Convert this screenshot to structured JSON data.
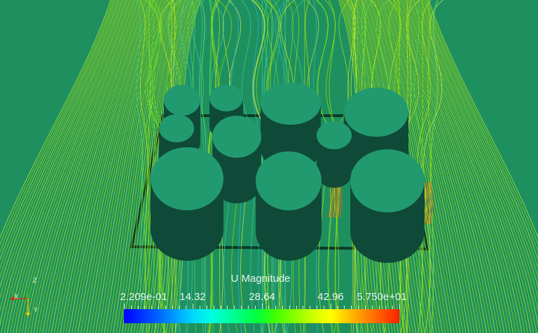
{
  "colors": {
    "background": "#1e9060",
    "cylinder_top": "#229a70",
    "cylinder_side": "#0f4a38",
    "plate_edge": "#0b3a2a"
  },
  "colorbar": {
    "title": "U Magnitude",
    "labels": [
      "2.209e-01",
      "14.32",
      "28.64",
      "42.96",
      "5.750e+01"
    ],
    "range": [
      0.2209,
      57.5
    ],
    "colormap": [
      "#0000ff",
      "#00ffff",
      "#00ff00",
      "#ffff00",
      "#ff0000"
    ]
  },
  "axes": {
    "x": "X",
    "y": "Y",
    "z": "Z"
  }
}
